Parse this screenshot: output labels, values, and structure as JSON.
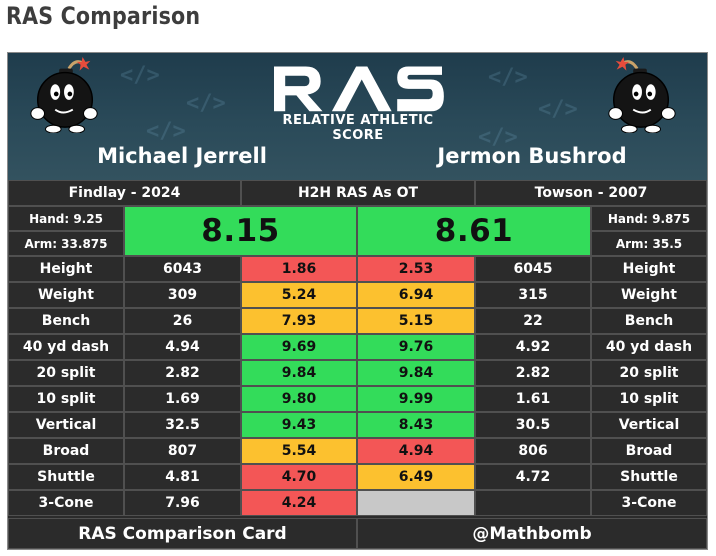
{
  "page": {
    "title": "RAS Comparison"
  },
  "header": {
    "logo_text": "RAS",
    "logo_subtitle": "RELATIVE ATHLETIC SCORE",
    "left_player": {
      "name": "Michael Jerrell",
      "school_year": "Findlay - 2024",
      "hand": "Hand: 9.25",
      "arm": "Arm: 33.875",
      "ras": "8.15"
    },
    "right_player": {
      "name": "Jermon Bushrod",
      "school_year": "Towson - 2007",
      "hand": "Hand: 9.875",
      "arm": "Arm: 35.5",
      "ras": "8.61"
    },
    "middle_label": "H2H RAS As OT"
  },
  "colors": {
    "green": "#33dc5a",
    "yellow": "#fcc12f",
    "red": "#f35656",
    "gray": "#c8c8c8",
    "dark": "#2b2b2b"
  },
  "metrics": [
    {
      "label": "Height",
      "left_value": "6043",
      "left_score": "1.86",
      "left_color": "red",
      "right_score": "2.53",
      "right_color": "red",
      "right_value": "6045"
    },
    {
      "label": "Weight",
      "left_value": "309",
      "left_score": "5.24",
      "left_color": "yellow",
      "right_score": "6.94",
      "right_color": "yellow",
      "right_value": "315"
    },
    {
      "label": "Bench",
      "left_value": "26",
      "left_score": "7.93",
      "left_color": "yellow",
      "right_score": "5.15",
      "right_color": "yellow",
      "right_value": "22"
    },
    {
      "label": "40 yd dash",
      "left_value": "4.94",
      "left_score": "9.69",
      "left_color": "green",
      "right_score": "9.76",
      "right_color": "green",
      "right_value": "4.92"
    },
    {
      "label": "20 split",
      "left_value": "2.82",
      "left_score": "9.84",
      "left_color": "green",
      "right_score": "9.84",
      "right_color": "green",
      "right_value": "2.82"
    },
    {
      "label": "10 split",
      "left_value": "1.69",
      "left_score": "9.80",
      "left_color": "green",
      "right_score": "9.99",
      "right_color": "green",
      "right_value": "1.61"
    },
    {
      "label": "Vertical",
      "left_value": "32.5",
      "left_score": "9.43",
      "left_color": "green",
      "right_score": "8.43",
      "right_color": "green",
      "right_value": "30.5"
    },
    {
      "label": "Broad",
      "left_value": "807",
      "left_score": "5.54",
      "left_color": "yellow",
      "right_score": "4.94",
      "right_color": "red",
      "right_value": "806"
    },
    {
      "label": "Shuttle",
      "left_value": "4.81",
      "left_score": "4.70",
      "left_color": "red",
      "right_score": "6.49",
      "right_color": "yellow",
      "right_value": "4.72"
    },
    {
      "label": "3-Cone",
      "left_value": "7.96",
      "left_score": "4.24",
      "left_color": "red",
      "right_score": "",
      "right_color": "gray",
      "right_value": ""
    }
  ],
  "footer": {
    "left": "RAS Comparison Card",
    "right": "@Mathbomb"
  }
}
